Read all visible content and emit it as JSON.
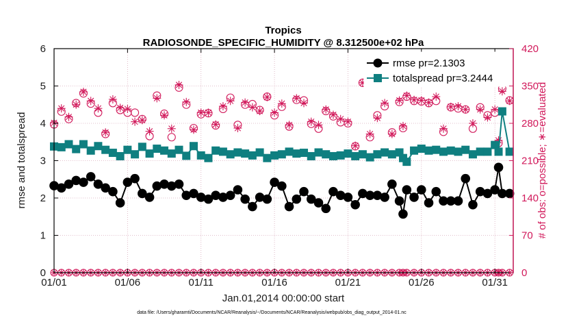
{
  "chart_data": {
    "type": "line",
    "title": "Tropics",
    "subtitle": "RADIOSONDE_SPECIFIC_HUMIDITY @ 8.312500e+02 hPa",
    "xlabel": "Jan.01,2014 00:00:00 start",
    "ylabel": "rmse and totalspread",
    "y2label": "# of obs: o=possible; ∗=evaluated",
    "footnote": "data file: /Users/gharamti/Documents/NCAR/Reanalysis/~/Documents/NCAR/Reanalysis/webpub/obs_diag_output_2014-01.nc",
    "xlim": [
      0,
      31.25
    ],
    "ylim": [
      0,
      6
    ],
    "y2lim": [
      0,
      420
    ],
    "xticks": [
      0,
      5,
      10,
      15,
      20,
      25,
      30
    ],
    "xticklabels": [
      "01/01",
      "01/06",
      "01/11",
      "01/16",
      "01/21",
      "01/26",
      "01/31"
    ],
    "yticks": [
      0,
      1,
      2,
      3,
      4,
      5,
      6
    ],
    "y2ticks": [
      0,
      70,
      140,
      210,
      280,
      350,
      420
    ],
    "colors": {
      "rmse": "#000000",
      "totalspread": "#0f7f80",
      "obs": "#d1185a",
      "grid": "#d9a9ba"
    },
    "x": [
      0.0,
      0.5,
      1.0,
      1.5,
      2.0,
      2.5,
      3.0,
      3.5,
      4.0,
      4.5,
      5.0,
      5.5,
      6.0,
      6.5,
      7.0,
      7.5,
      8.0,
      8.5,
      9.0,
      9.5,
      10.0,
      10.5,
      11.0,
      11.5,
      12.0,
      12.5,
      13.0,
      13.5,
      14.0,
      14.5,
      15.0,
      15.5,
      16.0,
      16.5,
      17.0,
      17.5,
      18.0,
      18.5,
      19.0,
      19.5,
      20.0,
      20.5,
      21.0,
      21.5,
      22.0,
      22.5,
      23.0,
      23.5,
      23.75,
      24.0,
      24.5,
      25.0,
      25.5,
      26.0,
      26.5,
      27.0,
      27.5,
      28.0,
      28.5,
      29.0,
      29.5,
      30.0,
      30.25,
      30.5,
      31.0
    ],
    "series": [
      {
        "name": "rmse",
        "legend": "rmse pr=2.1303",
        "values": [
          2.33,
          2.27,
          2.37,
          2.47,
          2.42,
          2.57,
          2.37,
          2.27,
          2.17,
          1.87,
          2.42,
          2.52,
          2.12,
          2.02,
          2.32,
          2.37,
          2.32,
          2.37,
          2.07,
          2.12,
          2.02,
          1.97,
          2.07,
          2.02,
          2.07,
          2.22,
          1.97,
          1.77,
          2.02,
          1.97,
          2.42,
          2.32,
          1.77,
          1.97,
          2.17,
          1.97,
          1.87,
          1.72,
          2.17,
          2.07,
          2.02,
          1.82,
          2.12,
          2.07,
          2.07,
          2.02,
          2.37,
          1.92,
          1.57,
          2.22,
          2.02,
          2.22,
          1.87,
          2.17,
          1.92,
          1.92,
          1.92,
          2.52,
          1.82,
          2.17,
          2.12,
          2.22,
          2.82,
          2.12,
          2.12
        ]
      },
      {
        "name": "totalspread",
        "legend": "totalspread pr=3.2444",
        "values": [
          3.38,
          3.36,
          3.44,
          3.31,
          3.44,
          3.27,
          3.39,
          3.29,
          3.21,
          3.12,
          3.29,
          3.17,
          3.37,
          3.19,
          3.32,
          3.27,
          3.19,
          3.29,
          3.13,
          3.39,
          3.14,
          3.07,
          3.27,
          3.24,
          3.17,
          3.22,
          3.19,
          3.14,
          3.22,
          3.07,
          3.14,
          3.17,
          3.24,
          3.19,
          3.21,
          3.12,
          3.22,
          3.17,
          3.12,
          3.14,
          3.19,
          3.12,
          3.17,
          3.09,
          3.17,
          3.22,
          3.17,
          3.22,
          3.07,
          2.97,
          3.27,
          3.32,
          3.27,
          3.29,
          3.24,
          3.27,
          3.24,
          3.29,
          3.17,
          3.24,
          3.24,
          3.42,
          3.24,
          4.32,
          3.24
        ]
      }
    ],
    "obs_possible": [
      278,
      302,
      288,
      318,
      336,
      317,
      300,
      260,
      318,
      305,
      300,
      300,
      288,
      256,
      332,
      298,
      254,
      347,
      315,
      271,
      297,
      299,
      276,
      307,
      328,
      277,
      315,
      316,
      305,
      330,
      295,
      311,
      274,
      324,
      323,
      279,
      270,
      303,
      293,
      282,
      280,
      237,
      356,
      254,
      295,
      312,
      263,
      320,
      271,
      330,
      322,
      321,
      318,
      322,
      264,
      310,
      308,
      306,
      270,
      310,
      295,
      300,
      243,
      345,
      323
    ],
    "obs_evaluated": [
      281,
      308,
      292,
      315,
      339,
      322,
      308,
      263,
      325,
      309,
      307,
      283,
      286,
      265,
      327,
      295,
      270,
      352,
      320,
      268,
      300,
      300,
      278,
      312,
      322,
      271,
      319,
      310,
      303,
      329,
      300,
      317,
      277,
      327,
      318,
      283,
      277,
      306,
      296,
      288,
      283,
      238,
      356,
      260,
      290,
      318,
      260,
      323,
      275,
      332,
      324,
      323,
      319,
      330,
      270,
      311,
      312,
      306,
      280,
      306,
      291,
      306,
      248,
      340,
      322
    ]
  }
}
